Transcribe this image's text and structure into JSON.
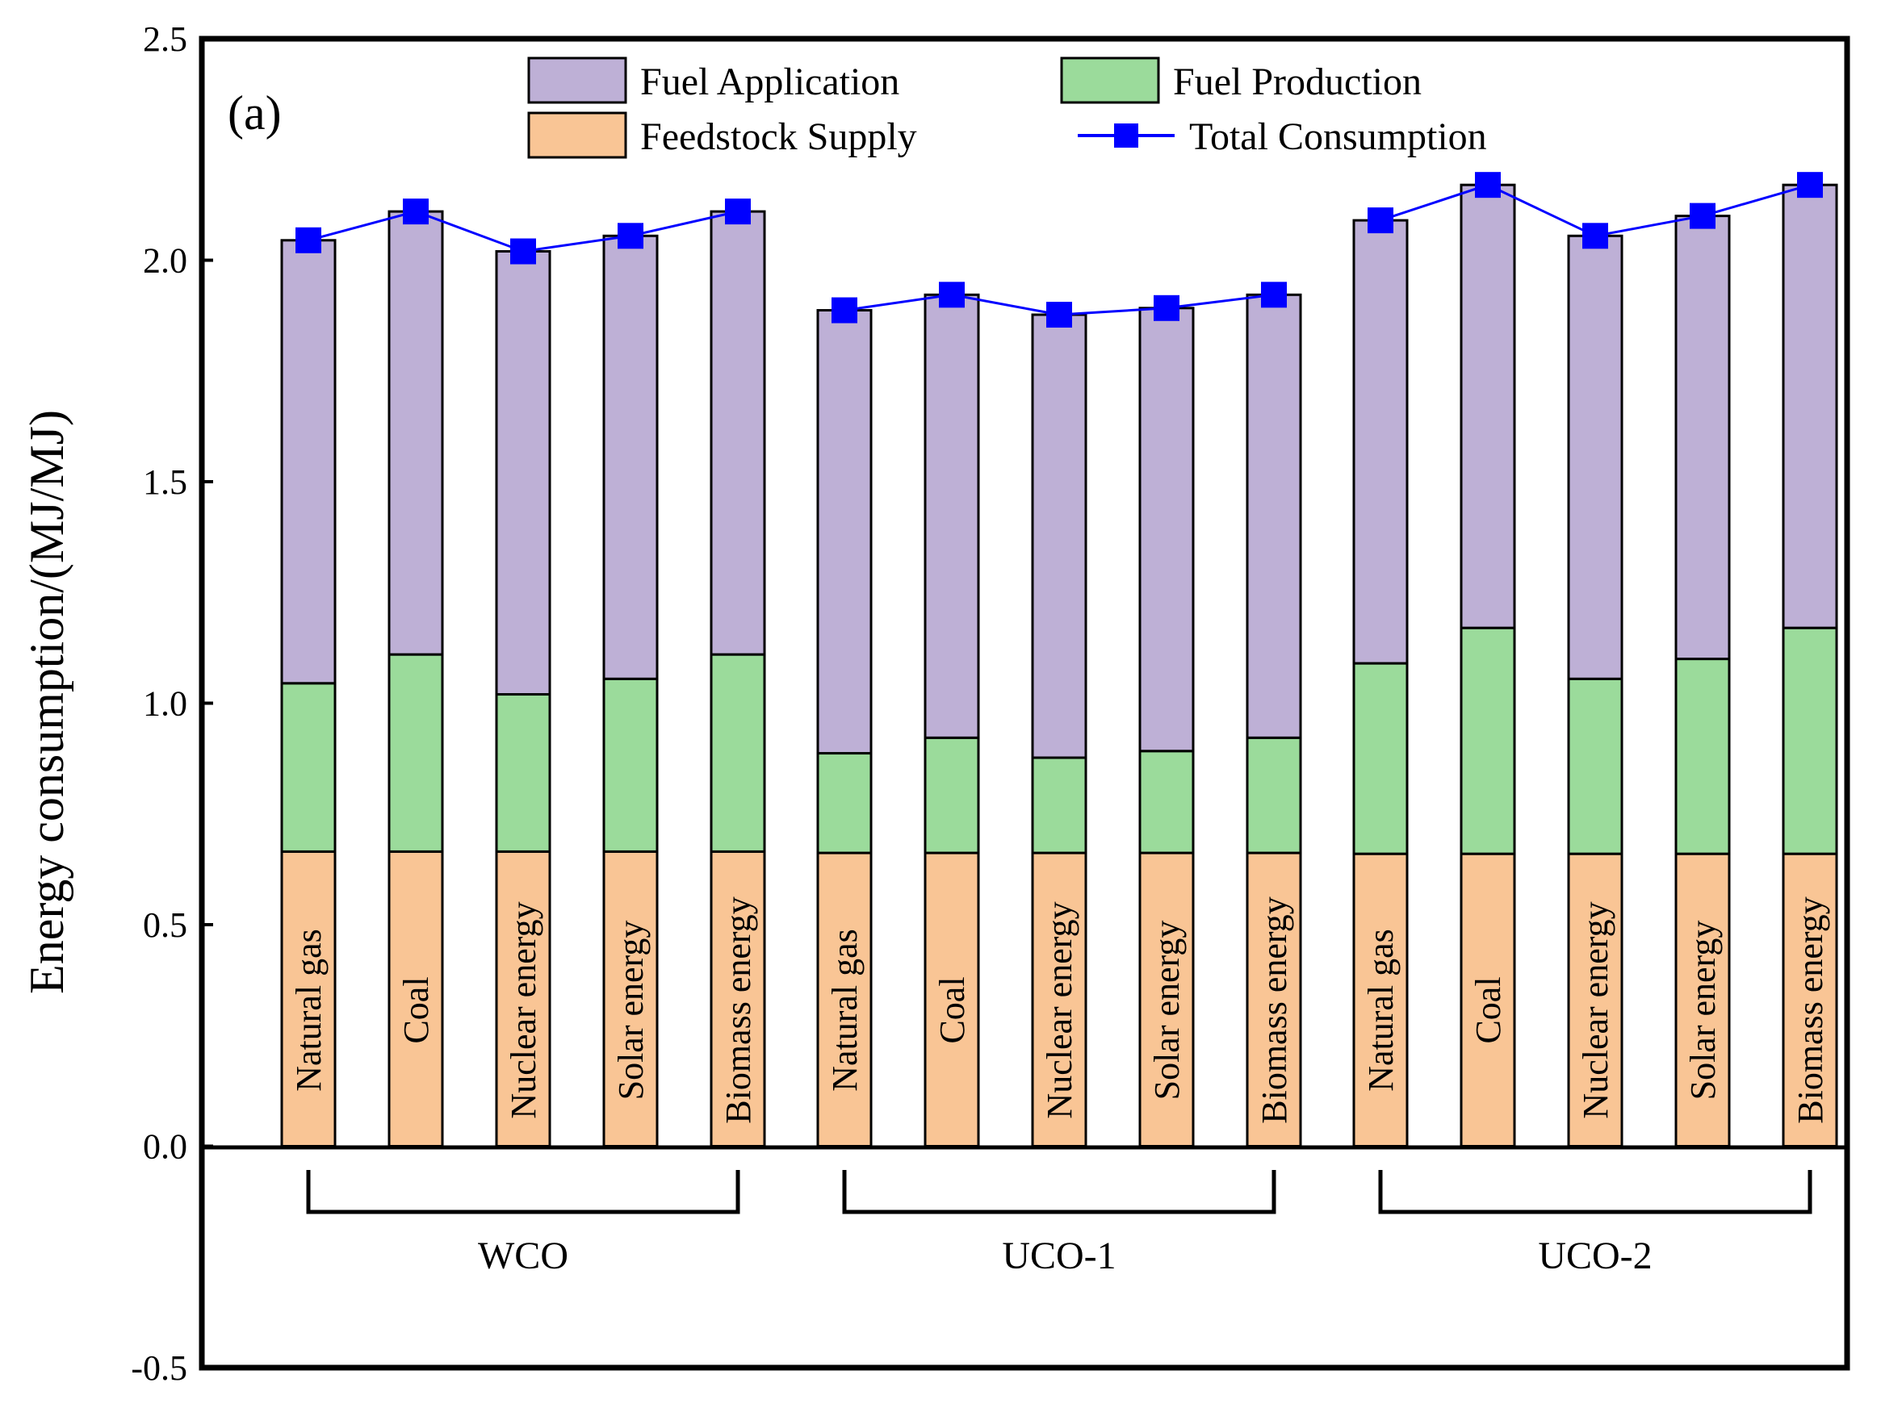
{
  "chart_data": {
    "type": "bar",
    "stacked": true,
    "panel_label": "(a)",
    "ylabel": "Energy consumption/(MJ/MJ)",
    "xlabel": "",
    "ylim": [
      -0.5,
      2.5
    ],
    "yticks": [
      "-0.5",
      "0.0",
      "0.5",
      "1.0",
      "1.5",
      "2.0",
      "2.5"
    ],
    "groups": [
      {
        "name": "WCO",
        "categories": [
          "Natural gas",
          "Coal",
          "Nuclear energy",
          "Solar energy",
          "Biomass energy"
        ]
      },
      {
        "name": "UCO-1",
        "categories": [
          "Natural gas",
          "Coal",
          "Nuclear energy",
          "Solar energy",
          "Biomass energy"
        ]
      },
      {
        "name": "UCO-2",
        "categories": [
          "Natural gas",
          "Coal",
          "Nuclear energy",
          "Solar energy",
          "Biomass energy"
        ]
      }
    ],
    "series": [
      {
        "name": "Feedstock Supply",
        "color": "#F9C595",
        "values": [
          0.665,
          0.665,
          0.665,
          0.665,
          0.665,
          0.662,
          0.662,
          0.662,
          0.662,
          0.662,
          0.66,
          0.66,
          0.66,
          0.66,
          0.66
        ]
      },
      {
        "name": "Fuel Production",
        "color": "#9BDB9B",
        "values": [
          0.38,
          0.445,
          0.355,
          0.39,
          0.445,
          0.225,
          0.26,
          0.215,
          0.23,
          0.26,
          0.43,
          0.51,
          0.395,
          0.44,
          0.51
        ]
      },
      {
        "name": "Fuel Application",
        "color": "#BEB0D6",
        "values": [
          1.0,
          1.0,
          1.0,
          1.0,
          1.0,
          1.0,
          1.0,
          1.0,
          1.0,
          1.0,
          1.0,
          1.0,
          1.0,
          1.0,
          1.0
        ]
      }
    ],
    "line_series": {
      "name": "Total Consumption",
      "color": "#0000FF",
      "values": [
        2.045,
        2.11,
        2.02,
        2.055,
        2.11,
        1.887,
        1.922,
        1.877,
        1.892,
        1.922,
        2.09,
        2.17,
        2.055,
        2.1,
        2.17
      ]
    },
    "legend": {
      "items": [
        {
          "label": "Fuel Application",
          "kind": "box",
          "color": "#BEB0D6"
        },
        {
          "label": "Fuel Production",
          "kind": "box",
          "color": "#9BDB9B"
        },
        {
          "label": "Feedstock Supply",
          "kind": "box",
          "color": "#F9C595"
        },
        {
          "label": "Total Consumption",
          "kind": "line",
          "color": "#0000FF"
        }
      ]
    }
  }
}
